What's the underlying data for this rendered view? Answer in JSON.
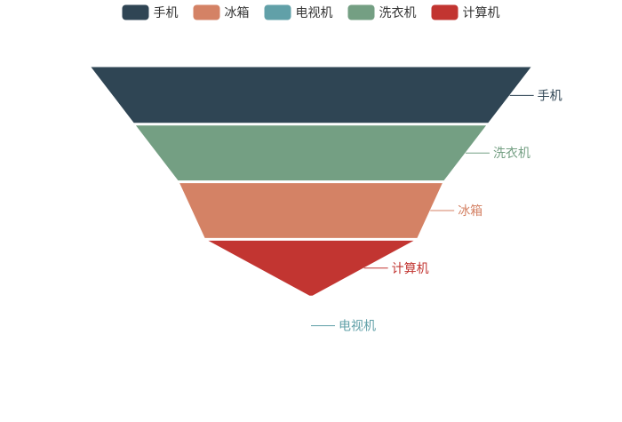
{
  "chart_data": {
    "type": "funnel",
    "legend": {
      "placement": "top-center",
      "items": [
        {
          "name": "手机",
          "color": "#2f4554"
        },
        {
          "name": "冰箱",
          "color": "#d48265"
        },
        {
          "name": "电视机",
          "color": "#61a0a8"
        },
        {
          "name": "洗衣机",
          "color": "#749f83"
        },
        {
          "name": "计算机",
          "color": "#c23531"
        }
      ]
    },
    "series": [
      {
        "name": "手机",
        "color": "#2f4554"
      },
      {
        "name": "洗衣机",
        "color": "#749f83"
      },
      {
        "name": "冰箱",
        "color": "#d48265"
      },
      {
        "name": "计算机",
        "color": "#c23531"
      },
      {
        "name": "电视机",
        "color": "#61a0a8"
      }
    ],
    "levels_relative": [
      1.0,
      0.8,
      0.6,
      0.48,
      0.0
    ]
  }
}
